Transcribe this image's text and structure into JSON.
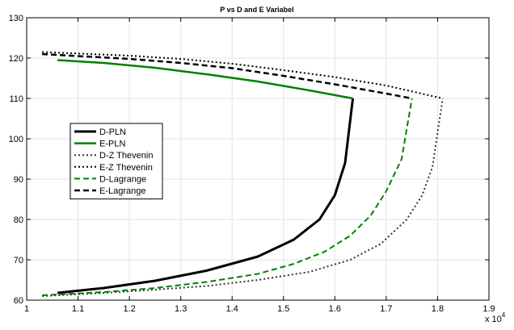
{
  "chart_data": {
    "type": "line",
    "title": "P vs D and E Variabel",
    "xlabel": "",
    "ylabel": "",
    "x_multiplier_label": "x 10",
    "x_multiplier_exponent": "4",
    "xlim": [
      1.0,
      1.9
    ],
    "ylim": [
      60,
      130
    ],
    "x_ticks": [
      1.0,
      1.1,
      1.2,
      1.3,
      1.4,
      1.5,
      1.6,
      1.7,
      1.8,
      1.9
    ],
    "x_tick_labels": [
      "1",
      "1.1",
      "1.2",
      "1.3",
      "1.4",
      "1.5",
      "1.6",
      "1.7",
      "1.8",
      "1.9"
    ],
    "y_ticks": [
      60,
      70,
      80,
      90,
      100,
      110,
      120,
      130
    ],
    "y_tick_labels": [
      "60",
      "70",
      "80",
      "90",
      "100",
      "110",
      "120",
      "130"
    ],
    "grid": true,
    "legend_position": "center-left",
    "series": [
      {
        "name": "D-PLN",
        "color": "#000000",
        "dash": "solid",
        "width": 3,
        "x": [
          1.06,
          1.15,
          1.25,
          1.35,
          1.45,
          1.52,
          1.57,
          1.6,
          1.62,
          1.635
        ],
        "y": [
          61.8,
          63,
          64.8,
          67.3,
          70.8,
          75,
          80,
          86,
          94,
          110
        ]
      },
      {
        "name": "E-PLN",
        "color": "#008000",
        "dash": "solid",
        "width": 2.5,
        "x": [
          1.06,
          1.15,
          1.25,
          1.35,
          1.45,
          1.55,
          1.635
        ],
        "y": [
          119.5,
          118.8,
          117.6,
          116,
          114.2,
          112,
          110
        ]
      },
      {
        "name": "D-Z Thevenin",
        "color": "#333333",
        "dash": "dot",
        "width": 2,
        "x": [
          1.03,
          1.15,
          1.25,
          1.35,
          1.45,
          1.55,
          1.63,
          1.69,
          1.74,
          1.77,
          1.79,
          1.81
        ],
        "y": [
          61,
          61.8,
          62.6,
          63.5,
          65,
          67,
          70,
          74,
          80,
          86,
          93,
          110
        ]
      },
      {
        "name": "E-Z Thevenin",
        "color": "#000000",
        "dash": "dot",
        "width": 2,
        "x": [
          1.03,
          1.2,
          1.3,
          1.4,
          1.5,
          1.6,
          1.7,
          1.81
        ],
        "y": [
          121.5,
          120.6,
          119.8,
          118.6,
          117,
          115.3,
          113.2,
          110
        ]
      },
      {
        "name": "D-Lagrange",
        "color": "#008000",
        "dash": "dash",
        "width": 2,
        "x": [
          1.03,
          1.15,
          1.25,
          1.35,
          1.45,
          1.52,
          1.58,
          1.63,
          1.67,
          1.7,
          1.73,
          1.75
        ],
        "y": [
          61.2,
          62,
          63,
          64.5,
          66.5,
          69,
          72,
          76,
          81,
          87,
          95,
          110
        ]
      },
      {
        "name": "E-Lagrange",
        "color": "#000000",
        "dash": "dash",
        "width": 2.5,
        "x": [
          1.03,
          1.2,
          1.3,
          1.4,
          1.5,
          1.6,
          1.7,
          1.75
        ],
        "y": [
          121,
          119.8,
          118.8,
          117.5,
          115.6,
          113.5,
          111.2,
          110
        ]
      }
    ]
  }
}
